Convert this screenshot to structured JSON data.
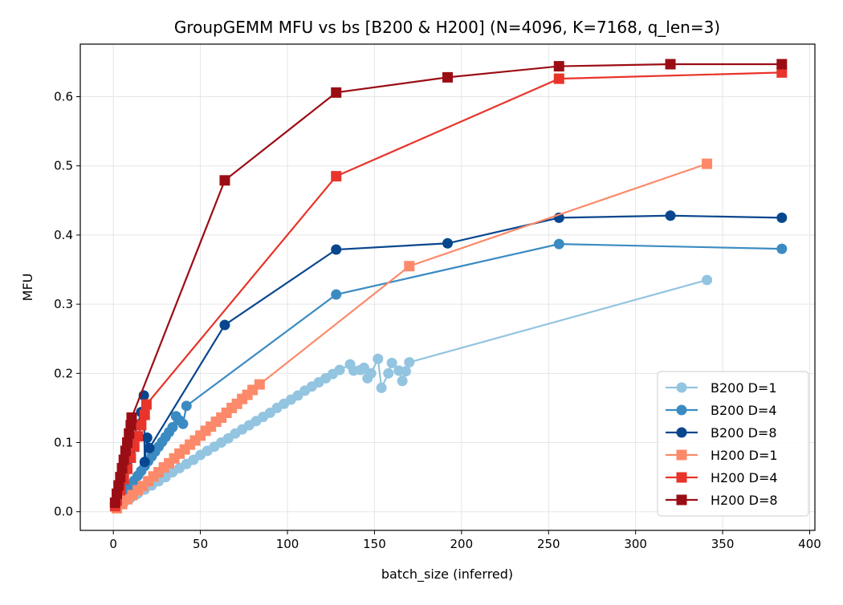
{
  "chart_data": {
    "type": "line",
    "title": "GroupGEMM MFU vs bs [B200 & H200] (N=4096, K=7168, q_len=3)",
    "xlabel": "batch_size (inferred)",
    "ylabel": "MFU",
    "xlim": [
      -19,
      403
    ],
    "ylim": [
      -0.027,
      0.676
    ],
    "xticks": [
      0,
      50,
      100,
      150,
      200,
      250,
      300,
      350,
      400
    ],
    "xtick_labels": [
      "0",
      "50",
      "100",
      "150",
      "200",
      "250",
      "300",
      "350",
      "400"
    ],
    "yticks": [
      0.0,
      0.1,
      0.2,
      0.3,
      0.4,
      0.5,
      0.6
    ],
    "ytick_labels": [
      "0.0",
      "0.1",
      "0.2",
      "0.3",
      "0.4",
      "0.5",
      "0.6"
    ],
    "grid": true,
    "legend_position": "lower-right",
    "series": [
      {
        "name": "B200 D=1",
        "color": "#93c4e0",
        "marker": "circle",
        "x": [
          2,
          6,
          10,
          14,
          18,
          22,
          26,
          30,
          34,
          38,
          42,
          46,
          50,
          54,
          58,
          62,
          66,
          70,
          74,
          78,
          82,
          86,
          90,
          94,
          98,
          102,
          106,
          110,
          114,
          118,
          122,
          126,
          130,
          136,
          138,
          142,
          144,
          146,
          148,
          152,
          154,
          158,
          160,
          164,
          166,
          168,
          170,
          341
        ],
        "y": [
          0.007,
          0.013,
          0.02,
          0.026,
          0.032,
          0.038,
          0.044,
          0.05,
          0.057,
          0.063,
          0.069,
          0.075,
          0.082,
          0.088,
          0.094,
          0.1,
          0.106,
          0.113,
          0.119,
          0.125,
          0.131,
          0.137,
          0.143,
          0.15,
          0.156,
          0.162,
          0.168,
          0.175,
          0.181,
          0.187,
          0.193,
          0.199,
          0.205,
          0.213,
          0.204,
          0.205,
          0.208,
          0.193,
          0.2,
          0.221,
          0.179,
          0.2,
          0.215,
          0.204,
          0.189,
          0.203,
          0.216,
          0.335
        ]
      },
      {
        "name": "B200 D=4",
        "color": "#3b8bc2",
        "marker": "circle",
        "x": [
          2,
          4,
          6,
          8,
          10,
          12,
          14,
          16,
          18,
          20,
          22,
          24,
          26,
          28,
          30,
          32,
          34,
          36,
          38,
          40,
          42,
          128,
          256,
          384
        ],
        "y": [
          0.01,
          0.017,
          0.024,
          0.031,
          0.038,
          0.045,
          0.052,
          0.059,
          0.066,
          0.073,
          0.08,
          0.087,
          0.094,
          0.101,
          0.108,
          0.115,
          0.122,
          0.138,
          0.132,
          0.127,
          0.153,
          0.314,
          0.387,
          0.38
        ]
      },
      {
        "name": "B200 D=8",
        "color": "#08478e",
        "marker": "circle",
        "x": [
          1,
          2,
          4,
          6,
          8,
          10,
          12,
          14,
          16,
          17.5,
          18,
          19.4,
          20.7,
          64,
          128,
          192,
          256,
          320,
          384
        ],
        "y": [
          0.012,
          0.02,
          0.038,
          0.055,
          0.073,
          0.09,
          0.108,
          0.126,
          0.144,
          0.168,
          0.072,
          0.107,
          0.092,
          0.27,
          0.379,
          0.388,
          0.425,
          0.428,
          0.425
        ]
      },
      {
        "name": "H200 D=1",
        "color": "#fc8a6a",
        "marker": "square",
        "x": [
          2,
          5,
          8,
          11,
          14,
          17,
          20,
          23,
          26,
          29,
          32,
          35,
          38,
          41,
          44,
          47,
          50,
          53,
          56,
          59,
          62,
          65,
          68,
          71,
          74,
          77,
          80,
          84,
          170,
          341
        ],
        "y": [
          0.005,
          0.011,
          0.018,
          0.024,
          0.031,
          0.037,
          0.044,
          0.051,
          0.057,
          0.064,
          0.07,
          0.077,
          0.084,
          0.09,
          0.097,
          0.103,
          0.11,
          0.117,
          0.123,
          0.13,
          0.136,
          0.143,
          0.15,
          0.156,
          0.163,
          0.169,
          0.176,
          0.184,
          0.355,
          0.503
        ]
      },
      {
        "name": "H200 D=4",
        "color": "#e8342a",
        "marker": "square",
        "x": [
          1,
          2,
          4,
          6,
          8,
          10,
          12,
          14,
          16,
          18,
          19,
          128,
          256,
          384
        ],
        "y": [
          0.008,
          0.016,
          0.031,
          0.047,
          0.062,
          0.078,
          0.094,
          0.109,
          0.125,
          0.14,
          0.155,
          0.485,
          0.626,
          0.635
        ]
      },
      {
        "name": "H200 D=8",
        "color": "#9b0d14",
        "marker": "square",
        "x": [
          1,
          2,
          3,
          4,
          5,
          6,
          7,
          8,
          9,
          10,
          10.5,
          64,
          128,
          192,
          256,
          320,
          384
        ],
        "y": [
          0.013,
          0.026,
          0.038,
          0.05,
          0.063,
          0.075,
          0.088,
          0.1,
          0.113,
          0.125,
          0.136,
          0.479,
          0.606,
          0.628,
          0.644,
          0.647,
          0.647
        ]
      }
    ]
  }
}
